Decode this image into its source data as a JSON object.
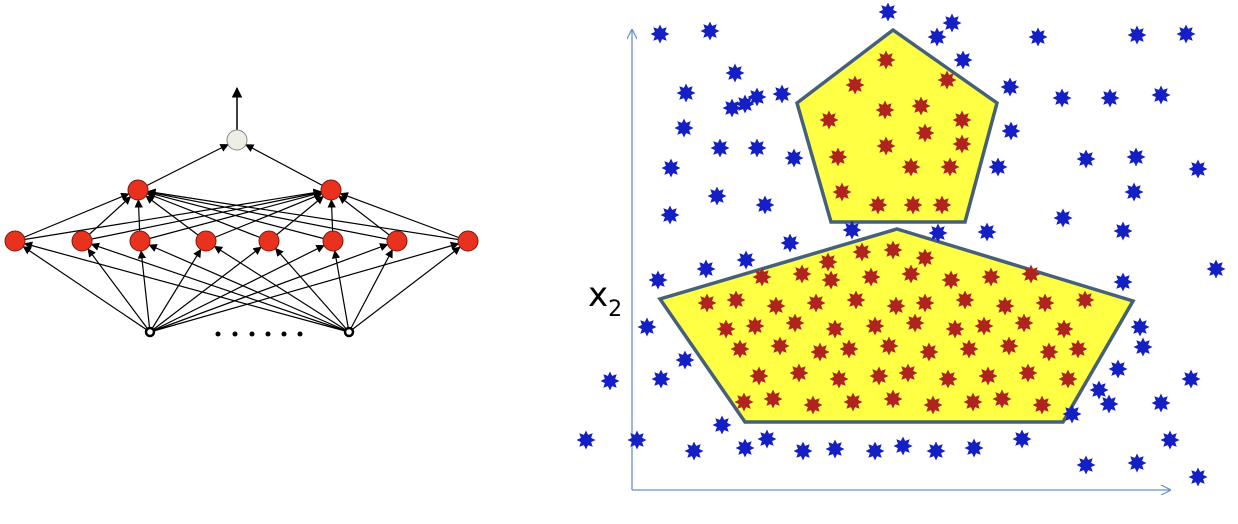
{
  "axis_label": {
    "base": "x",
    "subscript": "2"
  }
}
